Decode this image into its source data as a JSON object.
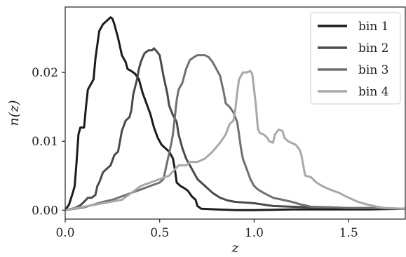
{
  "chart_data": {
    "type": "line",
    "xlabel": "z",
    "ylabel": "n(z)",
    "xlim": [
      0.0,
      1.8
    ],
    "ylim": [
      -0.0013,
      0.0295
    ],
    "xticks": [
      0.0,
      0.5,
      1.0,
      1.5
    ],
    "xtick_labels": [
      "0.0",
      "0.5",
      "1.0",
      "1.5"
    ],
    "yticks": [
      0.0,
      0.01,
      0.02
    ],
    "ytick_labels": [
      "0.00",
      "0.01",
      "0.02"
    ],
    "grid": false,
    "legend_position": "top-right",
    "series": [
      {
        "name": "bin 1",
        "color": "#1c1c1c",
        "points": [
          [
            0.0,
            0.0
          ],
          [
            0.02,
            0.0008
          ],
          [
            0.04,
            0.0025
          ],
          [
            0.05,
            0.0035
          ],
          [
            0.06,
            0.007
          ],
          [
            0.07,
            0.011
          ],
          [
            0.08,
            0.012
          ],
          [
            0.1,
            0.012
          ],
          [
            0.11,
            0.015
          ],
          [
            0.12,
            0.0175
          ],
          [
            0.13,
            0.018
          ],
          [
            0.15,
            0.019
          ],
          [
            0.16,
            0.022
          ],
          [
            0.17,
            0.024
          ],
          [
            0.18,
            0.026
          ],
          [
            0.19,
            0.0265
          ],
          [
            0.2,
            0.027
          ],
          [
            0.22,
            0.0275
          ],
          [
            0.24,
            0.028
          ],
          [
            0.25,
            0.0278
          ],
          [
            0.26,
            0.027
          ],
          [
            0.28,
            0.025
          ],
          [
            0.3,
            0.0225
          ],
          [
            0.32,
            0.0215
          ],
          [
            0.33,
            0.0205
          ],
          [
            0.35,
            0.0202
          ],
          [
            0.37,
            0.0198
          ],
          [
            0.39,
            0.019
          ],
          [
            0.41,
            0.017
          ],
          [
            0.43,
            0.0155
          ],
          [
            0.45,
            0.014
          ],
          [
            0.47,
            0.012
          ],
          [
            0.49,
            0.0105
          ],
          [
            0.51,
            0.0095
          ],
          [
            0.53,
            0.009
          ],
          [
            0.55,
            0.0085
          ],
          [
            0.57,
            0.0075
          ],
          [
            0.58,
            0.006
          ],
          [
            0.59,
            0.004
          ],
          [
            0.61,
            0.0035
          ],
          [
            0.63,
            0.0032
          ],
          [
            0.65,
            0.0028
          ],
          [
            0.67,
            0.002
          ],
          [
            0.69,
            0.0015
          ],
          [
            0.7,
            0.0006
          ],
          [
            0.72,
            0.0002
          ],
          [
            0.8,
            0.0001
          ],
          [
            0.9,
            0.0
          ],
          [
            1.0,
            0.0
          ],
          [
            1.2,
            0.0001
          ],
          [
            1.4,
            0.0001
          ],
          [
            1.6,
            0.0001
          ],
          [
            1.8,
            0.0002
          ]
        ]
      },
      {
        "name": "bin 2",
        "color": "#4a4a4a",
        "points": [
          [
            0.0,
            0.0
          ],
          [
            0.05,
            0.0003
          ],
          [
            0.08,
            0.0007
          ],
          [
            0.1,
            0.0012
          ],
          [
            0.12,
            0.0018
          ],
          [
            0.14,
            0.0018
          ],
          [
            0.16,
            0.0022
          ],
          [
            0.17,
            0.0035
          ],
          [
            0.18,
            0.004
          ],
          [
            0.2,
            0.0055
          ],
          [
            0.22,
            0.006
          ],
          [
            0.24,
            0.0065
          ],
          [
            0.26,
            0.008
          ],
          [
            0.28,
            0.0085
          ],
          [
            0.29,
            0.01
          ],
          [
            0.3,
            0.0115
          ],
          [
            0.32,
            0.013
          ],
          [
            0.34,
            0.0135
          ],
          [
            0.35,
            0.0145
          ],
          [
            0.36,
            0.0168
          ],
          [
            0.38,
            0.019
          ],
          [
            0.39,
            0.0205
          ],
          [
            0.4,
            0.0215
          ],
          [
            0.41,
            0.0222
          ],
          [
            0.42,
            0.0228
          ],
          [
            0.44,
            0.0232
          ],
          [
            0.46,
            0.0232
          ],
          [
            0.47,
            0.0235
          ],
          [
            0.48,
            0.0232
          ],
          [
            0.5,
            0.0225
          ],
          [
            0.51,
            0.021
          ],
          [
            0.52,
            0.0195
          ],
          [
            0.54,
            0.017
          ],
          [
            0.55,
            0.0152
          ],
          [
            0.57,
            0.0138
          ],
          [
            0.59,
            0.0128
          ],
          [
            0.6,
            0.011
          ],
          [
            0.62,
            0.009
          ],
          [
            0.64,
            0.0075
          ],
          [
            0.66,
            0.0065
          ],
          [
            0.68,
            0.0055
          ],
          [
            0.7,
            0.0045
          ],
          [
            0.72,
            0.004
          ],
          [
            0.74,
            0.0035
          ],
          [
            0.76,
            0.003
          ],
          [
            0.78,
            0.0025
          ],
          [
            0.82,
            0.0018
          ],
          [
            0.86,
            0.0014
          ],
          [
            0.9,
            0.0012
          ],
          [
            1.0,
            0.001
          ],
          [
            1.1,
            0.0006
          ],
          [
            1.2,
            0.0005
          ],
          [
            1.3,
            0.0004
          ],
          [
            1.4,
            0.0004
          ],
          [
            1.5,
            0.0003
          ],
          [
            1.6,
            0.0003
          ],
          [
            1.8,
            0.0002
          ]
        ]
      },
      {
        "name": "bin 3",
        "color": "#707070",
        "points": [
          [
            0.0,
            0.0
          ],
          [
            0.05,
            0.0002
          ],
          [
            0.1,
            0.0004
          ],
          [
            0.15,
            0.0008
          ],
          [
            0.2,
            0.0012
          ],
          [
            0.25,
            0.0015
          ],
          [
            0.3,
            0.002
          ],
          [
            0.35,
            0.0025
          ],
          [
            0.4,
            0.003
          ],
          [
            0.45,
            0.0035
          ],
          [
            0.5,
            0.004
          ],
          [
            0.52,
            0.0045
          ],
          [
            0.54,
            0.007
          ],
          [
            0.56,
            0.0095
          ],
          [
            0.57,
            0.011
          ],
          [
            0.58,
            0.0135
          ],
          [
            0.59,
            0.016
          ],
          [
            0.6,
            0.0175
          ],
          [
            0.62,
            0.0185
          ],
          [
            0.64,
            0.0205
          ],
          [
            0.66,
            0.0218
          ],
          [
            0.68,
            0.0222
          ],
          [
            0.7,
            0.0225
          ],
          [
            0.74,
            0.0225
          ],
          [
            0.76,
            0.0222
          ],
          [
            0.78,
            0.0215
          ],
          [
            0.8,
            0.0205
          ],
          [
            0.82,
            0.0195
          ],
          [
            0.84,
            0.017
          ],
          [
            0.85,
            0.0155
          ],
          [
            0.87,
            0.015
          ],
          [
            0.89,
            0.0142
          ],
          [
            0.91,
            0.0128
          ],
          [
            0.92,
            0.011
          ],
          [
            0.93,
            0.009
          ],
          [
            0.94,
            0.0075
          ],
          [
            0.96,
            0.006
          ],
          [
            0.98,
            0.0045
          ],
          [
            1.0,
            0.0035
          ],
          [
            1.02,
            0.003
          ],
          [
            1.05,
            0.0025
          ],
          [
            1.1,
            0.0018
          ],
          [
            1.15,
            0.0015
          ],
          [
            1.2,
            0.0012
          ],
          [
            1.25,
            0.0008
          ],
          [
            1.3,
            0.0005
          ],
          [
            1.4,
            0.0004
          ],
          [
            1.5,
            0.0003
          ],
          [
            1.6,
            0.0003
          ],
          [
            1.8,
            0.0002
          ]
        ]
      },
      {
        "name": "bin 4",
        "color": "#a8a8a8",
        "points": [
          [
            0.0,
            0.0
          ],
          [
            0.1,
            0.0005
          ],
          [
            0.2,
            0.001
          ],
          [
            0.3,
            0.0015
          ],
          [
            0.35,
            0.0025
          ],
          [
            0.4,
            0.0035
          ],
          [
            0.45,
            0.004
          ],
          [
            0.5,
            0.0045
          ],
          [
            0.55,
            0.005
          ],
          [
            0.6,
            0.0065
          ],
          [
            0.64,
            0.0065
          ],
          [
            0.66,
            0.007
          ],
          [
            0.7,
            0.007
          ],
          [
            0.74,
            0.0075
          ],
          [
            0.78,
            0.0085
          ],
          [
            0.82,
            0.0098
          ],
          [
            0.85,
            0.011
          ],
          [
            0.87,
            0.0125
          ],
          [
            0.89,
            0.013
          ],
          [
            0.9,
            0.0145
          ],
          [
            0.91,
            0.017
          ],
          [
            0.92,
            0.019
          ],
          [
            0.94,
            0.02
          ],
          [
            0.96,
            0.02
          ],
          [
            0.98,
            0.0202
          ],
          [
            0.99,
            0.0198
          ],
          [
            1.0,
            0.0175
          ],
          [
            1.01,
            0.015
          ],
          [
            1.02,
            0.0118
          ],
          [
            1.03,
            0.0112
          ],
          [
            1.05,
            0.011
          ],
          [
            1.07,
            0.0105
          ],
          [
            1.08,
            0.01
          ],
          [
            1.1,
            0.0098
          ],
          [
            1.11,
            0.011
          ],
          [
            1.13,
            0.0117
          ],
          [
            1.15,
            0.0115
          ],
          [
            1.16,
            0.0105
          ],
          [
            1.18,
            0.01
          ],
          [
            1.22,
            0.0095
          ],
          [
            1.24,
            0.0088
          ],
          [
            1.25,
            0.008
          ],
          [
            1.26,
            0.0065
          ],
          [
            1.27,
            0.005
          ],
          [
            1.3,
            0.0048
          ],
          [
            1.33,
            0.004
          ],
          [
            1.36,
            0.0035
          ],
          [
            1.4,
            0.003
          ],
          [
            1.45,
            0.0025
          ],
          [
            1.5,
            0.0018
          ],
          [
            1.55,
            0.0012
          ],
          [
            1.6,
            0.0008
          ],
          [
            1.65,
            0.0005
          ],
          [
            1.7,
            0.0003
          ],
          [
            1.8,
            0.0002
          ]
        ]
      }
    ]
  }
}
